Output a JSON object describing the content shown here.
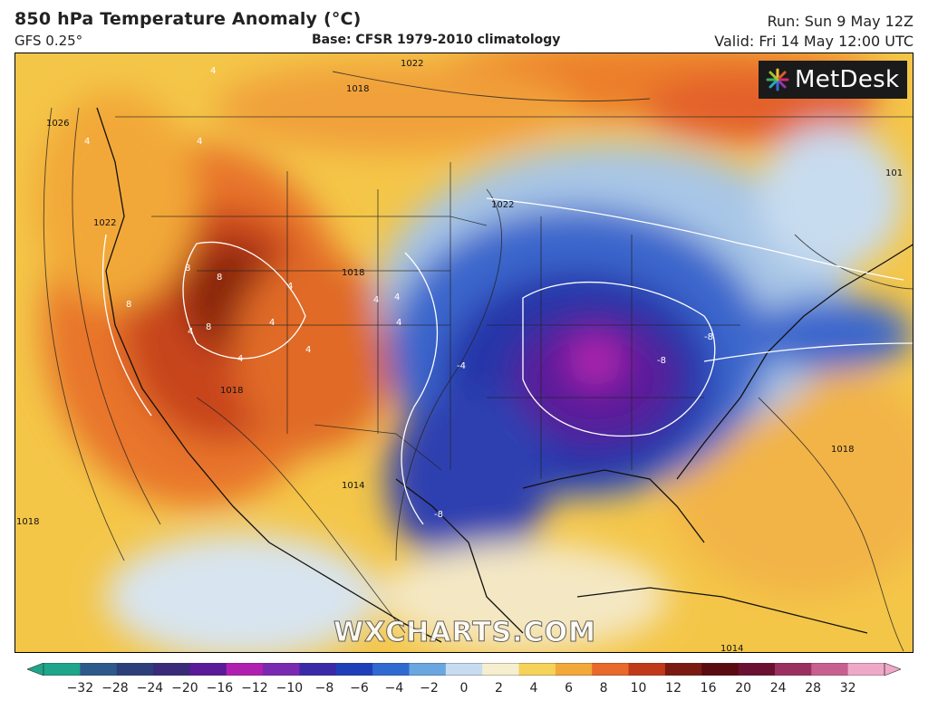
{
  "header": {
    "title": "850 hPa Temperature Anomaly (°C)",
    "model": "GFS 0.25°",
    "base": "Base: CFSR 1979-2010 climatology",
    "run": "Run: Sun 9 May 12Z",
    "valid": "Valid: Fri 14 May 12:00 UTC"
  },
  "logo": {
    "text": "MetDesk"
  },
  "watermark": "WXCHARTS.COM",
  "colorbar": {
    "ticks": [
      "−32",
      "−28",
      "−24",
      "−20",
      "−16",
      "−12",
      "−10",
      "−8",
      "−6",
      "−4",
      "−2",
      "0",
      "2",
      "4",
      "6",
      "8",
      "10",
      "12",
      "16",
      "20",
      "24",
      "28",
      "32"
    ],
    "colors": [
      "#1fa58a",
      "#2d5a8a",
      "#2c3f7a",
      "#3a2a7a",
      "#5a1a9a",
      "#b020b0",
      "#7a2ab0",
      "#3a2aa8",
      "#1f3fb8",
      "#2f6ad0",
      "#6aa6e0",
      "#c8dcef",
      "#f6efcf",
      "#f5d25a",
      "#f2a93a",
      "#e8692a",
      "#c03a1a",
      "#7a1a10",
      "#5a0a10",
      "#6a1030",
      "#9a3060",
      "#c76090",
      "#f0a8c8"
    ]
  },
  "map": {
    "isobar_labels": [
      "1022",
      "1018",
      "1026",
      "1022",
      "1022",
      "1018",
      "1018",
      "1014",
      "1018",
      "1018",
      "1014",
      "101"
    ],
    "anomaly_labels": [
      "4",
      "4",
      "4",
      "4",
      "8",
      "8",
      "8",
      "4",
      "4",
      "4",
      "4",
      "8",
      "-8",
      "-8",
      "-8",
      "-4",
      "4",
      "4",
      "4"
    ]
  }
}
